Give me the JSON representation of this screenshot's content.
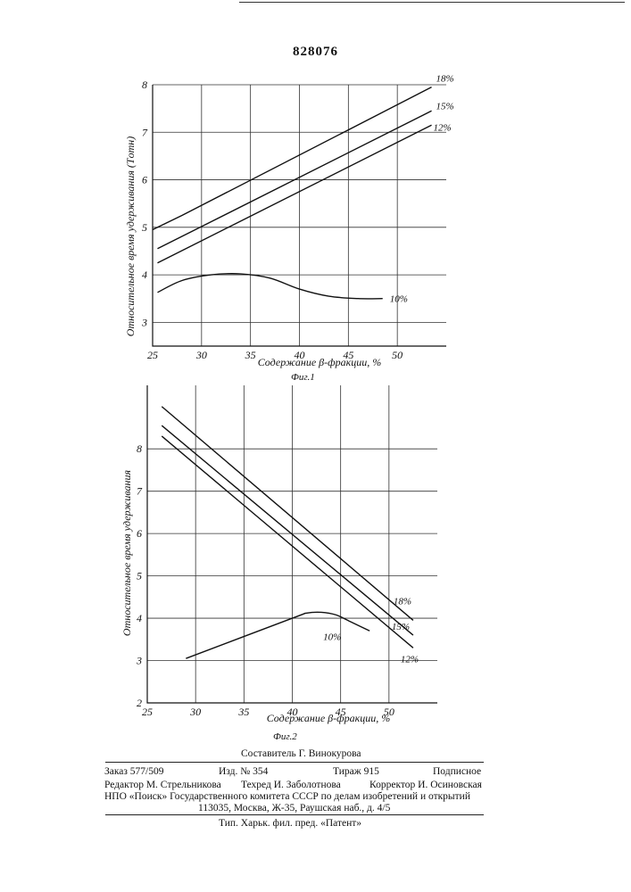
{
  "document": {
    "patent_number": "828076"
  },
  "chart_data": [
    {
      "type": "line",
      "xlabel": "Содержание β-фракции, %",
      "ylabel": "Относительное время удерживания (Tотн)",
      "caption": "Фиг.1",
      "xlim": [
        25,
        55
      ],
      "ylim": [
        2.5,
        8
      ],
      "x_ticks": [
        25,
        30,
        35,
        40,
        45,
        50
      ],
      "y_ticks": [
        3,
        4,
        5,
        6,
        7,
        8
      ],
      "x_tick_labels": [
        "25",
        "30",
        "35",
        "40",
        "45",
        "50"
      ],
      "y_tick_labels": [
        "3",
        "4",
        "5",
        "6",
        "7",
        "8"
      ],
      "grid": true,
      "series": [
        {
          "name": "18%",
          "x": [
            25,
            28,
            53.5
          ],
          "y": [
            4.95,
            5.25,
            7.95
          ]
        },
        {
          "name": "15%",
          "x": [
            25.5,
            53.5
          ],
          "y": [
            4.55,
            7.45
          ]
        },
        {
          "name": "12%",
          "x": [
            25.5,
            53.5
          ],
          "y": [
            4.25,
            7.15
          ]
        },
        {
          "name": "10%",
          "x": [
            25.5,
            28,
            31,
            34,
            37,
            40,
            43,
            46,
            48.5
          ],
          "y": [
            3.63,
            3.88,
            4.0,
            4.02,
            3.93,
            3.7,
            3.55,
            3.5,
            3.5
          ]
        }
      ]
    },
    {
      "type": "line",
      "xlabel": "Содержание β-фракции, %",
      "ylabel": "Относительное время удерживания",
      "caption": "Фиг.2",
      "xlim": [
        25,
        55
      ],
      "ylim": [
        2,
        9.5
      ],
      "x_ticks": [
        25,
        30,
        35,
        40,
        45,
        50
      ],
      "y_ticks": [
        2,
        3,
        4,
        5,
        6,
        7,
        8
      ],
      "x_tick_labels": [
        "25",
        "30",
        "35",
        "40",
        "45",
        "50"
      ],
      "y_tick_labels": [
        "2",
        "3",
        "4",
        "5",
        "6",
        "7",
        "8"
      ],
      "grid": true,
      "series": [
        {
          "name": "18%",
          "x": [
            26.5,
            52.5
          ],
          "y": [
            9.0,
            3.95
          ]
        },
        {
          "name": "15%",
          "x": [
            26.5,
            52.5
          ],
          "y": [
            8.55,
            3.6
          ]
        },
        {
          "name": "12%",
          "x": [
            26.5,
            52.5
          ],
          "y": [
            8.3,
            3.3
          ]
        },
        {
          "name": "10%",
          "x": [
            29,
            40,
            41.5,
            43,
            44.5,
            46,
            48
          ],
          "y": [
            3.05,
            4.0,
            4.12,
            4.14,
            4.08,
            3.92,
            3.7
          ]
        }
      ]
    }
  ],
  "imprint": {
    "compiler": "Составитель Г. Винокурова",
    "order": "Заказ 577/509",
    "edition": "Изд. № 354",
    "run": "Тираж 915",
    "subscription": "Подписное",
    "editor": "Редактор М. Стрельникова",
    "techred": "Техред И. Заболотнова",
    "corrector": "Корректор И. Осиновская",
    "org_line": "НПО «Поиск» Государственного комитета СССР по делам изобретений и открытий",
    "address": "113035, Москва, Ж-35, Раушская наб., д. 4/5",
    "printer": "Тип. Харьк. фил. пред. «Патент»"
  }
}
